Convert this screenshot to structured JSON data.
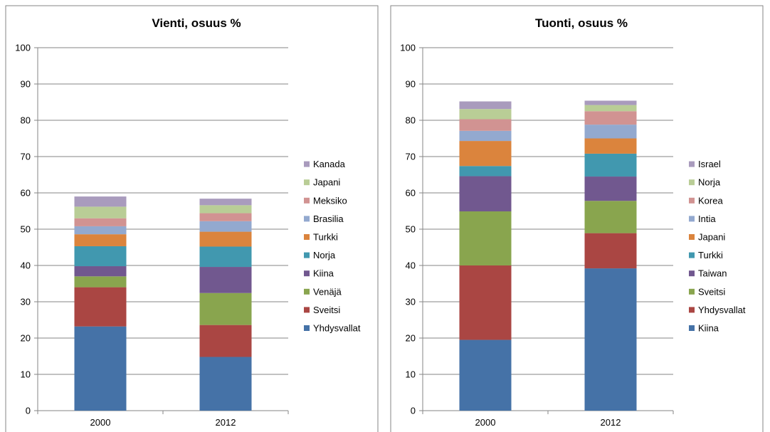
{
  "chart_data": [
    {
      "type": "bar",
      "stacked": true,
      "title": "Vienti, osuus %",
      "categories": [
        "2000",
        "2012"
      ],
      "ylim": [
        0,
        100
      ],
      "yticks": [
        "0",
        "10",
        "20",
        "30",
        "40",
        "50",
        "60",
        "70",
        "80",
        "90",
        "100"
      ],
      "grid": true,
      "legend_position": "right",
      "series": [
        {
          "name": "Yhdysvallat",
          "color": "#4572A7",
          "values": [
            23.2,
            14.8
          ]
        },
        {
          "name": "Sveitsi",
          "color": "#AA4643",
          "values": [
            10.8,
            8.8
          ]
        },
        {
          "name": "Venäjä",
          "color": "#89A54E",
          "values": [
            3.0,
            8.8
          ]
        },
        {
          "name": "Kiina",
          "color": "#71588F",
          "values": [
            2.8,
            7.2
          ]
        },
        {
          "name": "Norja",
          "color": "#4198AF",
          "values": [
            5.5,
            5.6
          ]
        },
        {
          "name": "Turkki",
          "color": "#DB843D",
          "values": [
            3.3,
            4.1
          ]
        },
        {
          "name": "Brasilia",
          "color": "#93A9CF",
          "values": [
            2.2,
            2.9
          ]
        },
        {
          "name": "Meksiko",
          "color": "#D19392",
          "values": [
            2.2,
            2.2
          ]
        },
        {
          "name": "Japani",
          "color": "#B9CD96",
          "values": [
            3.2,
            2.2
          ]
        },
        {
          "name": "Kanada",
          "color": "#A99BBD",
          "values": [
            2.8,
            1.8
          ]
        }
      ]
    },
    {
      "type": "bar",
      "stacked": true,
      "title": "Tuonti, osuus %",
      "categories": [
        "2000",
        "2012"
      ],
      "ylim": [
        0,
        100
      ],
      "yticks": [
        "0",
        "10",
        "20",
        "30",
        "40",
        "50",
        "60",
        "70",
        "80",
        "90",
        "100"
      ],
      "grid": true,
      "legend_position": "right",
      "series": [
        {
          "name": "Kiina",
          "color": "#4572A7",
          "values": [
            19.5,
            39.2
          ]
        },
        {
          "name": "Yhdysvallat",
          "color": "#AA4643",
          "values": [
            20.5,
            9.7
          ]
        },
        {
          "name": "Sveitsi",
          "color": "#89A54E",
          "values": [
            14.9,
            8.9
          ]
        },
        {
          "name": "Taiwan",
          "color": "#71588F",
          "values": [
            9.7,
            6.7
          ]
        },
        {
          "name": "Turkki",
          "color": "#4198AF",
          "values": [
            2.8,
            6.3
          ]
        },
        {
          "name": "Japani",
          "color": "#DB843D",
          "values": [
            6.9,
            4.2
          ]
        },
        {
          "name": "Intia",
          "color": "#93A9CF",
          "values": [
            2.8,
            3.8
          ]
        },
        {
          "name": "Korea",
          "color": "#D19392",
          "values": [
            3.2,
            3.7
          ]
        },
        {
          "name": "Norja",
          "color": "#B9CD96",
          "values": [
            2.8,
            1.7
          ]
        },
        {
          "name": "Israel",
          "color": "#A99BBD",
          "values": [
            2.1,
            1.2
          ]
        }
      ]
    }
  ]
}
